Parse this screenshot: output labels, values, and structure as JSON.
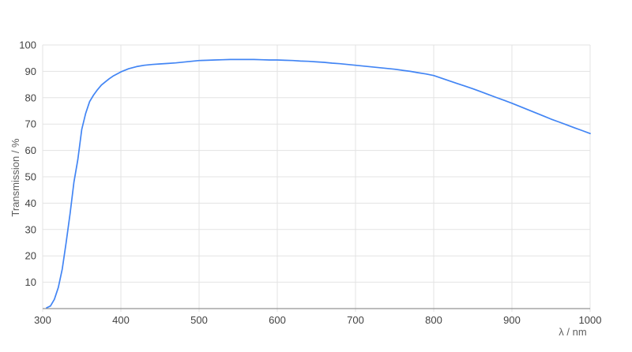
{
  "colors": {
    "background": "#ffffff",
    "line": "#4285f4",
    "grid": "#e3e3e3",
    "baseline": "#7a7a7a",
    "tick_label": "#424242",
    "axis_title": "#5f5f5f"
  },
  "chart_data": {
    "type": "line",
    "title": "",
    "xlabel": "λ / nm",
    "ylabel": "Transmission / %",
    "xlim": [
      300,
      1000
    ],
    "ylim": [
      0,
      100
    ],
    "x_ticks": [
      300,
      400,
      500,
      600,
      700,
      800,
      900,
      1000
    ],
    "y_ticks": [
      10,
      20,
      30,
      40,
      50,
      60,
      70,
      80,
      90,
      100
    ],
    "y_gridlines": [
      0,
      10,
      20,
      30,
      40,
      50,
      60,
      70,
      80,
      90,
      100
    ],
    "grid": true,
    "legend": "none",
    "series": [
      {
        "name": "Transmission",
        "color": "#4285f4",
        "x": [
          305,
          310,
          315,
          320,
          325,
          330,
          335,
          340,
          345,
          350,
          355,
          360,
          365,
          370,
          375,
          380,
          385,
          390,
          395,
          400,
          410,
          420,
          430,
          440,
          450,
          460,
          470,
          480,
          490,
          500,
          510,
          520,
          530,
          540,
          550,
          560,
          570,
          580,
          590,
          600,
          610,
          620,
          630,
          640,
          650,
          660,
          670,
          680,
          690,
          700,
          710,
          720,
          730,
          740,
          750,
          760,
          770,
          780,
          790,
          800,
          810,
          820,
          830,
          840,
          850,
          860,
          870,
          880,
          890,
          900,
          910,
          920,
          930,
          940,
          950,
          960,
          970,
          980,
          990,
          1000
        ],
        "y": [
          0.3,
          1,
          3.5,
          8,
          15,
          25,
          36,
          48,
          56.5,
          68,
          74,
          78.5,
          81,
          83,
          84.8,
          86,
          87.2,
          88.2,
          89,
          89.8,
          91,
          91.8,
          92.3,
          92.6,
          92.8,
          93,
          93.2,
          93.5,
          93.8,
          94.1,
          94.2,
          94.3,
          94.4,
          94.5,
          94.5,
          94.5,
          94.5,
          94.4,
          94.3,
          94.3,
          94.2,
          94.1,
          93.9,
          93.8,
          93.6,
          93.4,
          93.1,
          92.9,
          92.6,
          92.3,
          92,
          91.7,
          91.4,
          91.1,
          90.8,
          90.4,
          90,
          89.5,
          89,
          88.4,
          87.4,
          86.4,
          85.4,
          84.4,
          83.4,
          82.3,
          81.2,
          80.1,
          79,
          77.9,
          76.7,
          75.5,
          74.3,
          73.1,
          71.9,
          70.8,
          69.7,
          68.6,
          67.5,
          66.4
        ]
      }
    ]
  }
}
